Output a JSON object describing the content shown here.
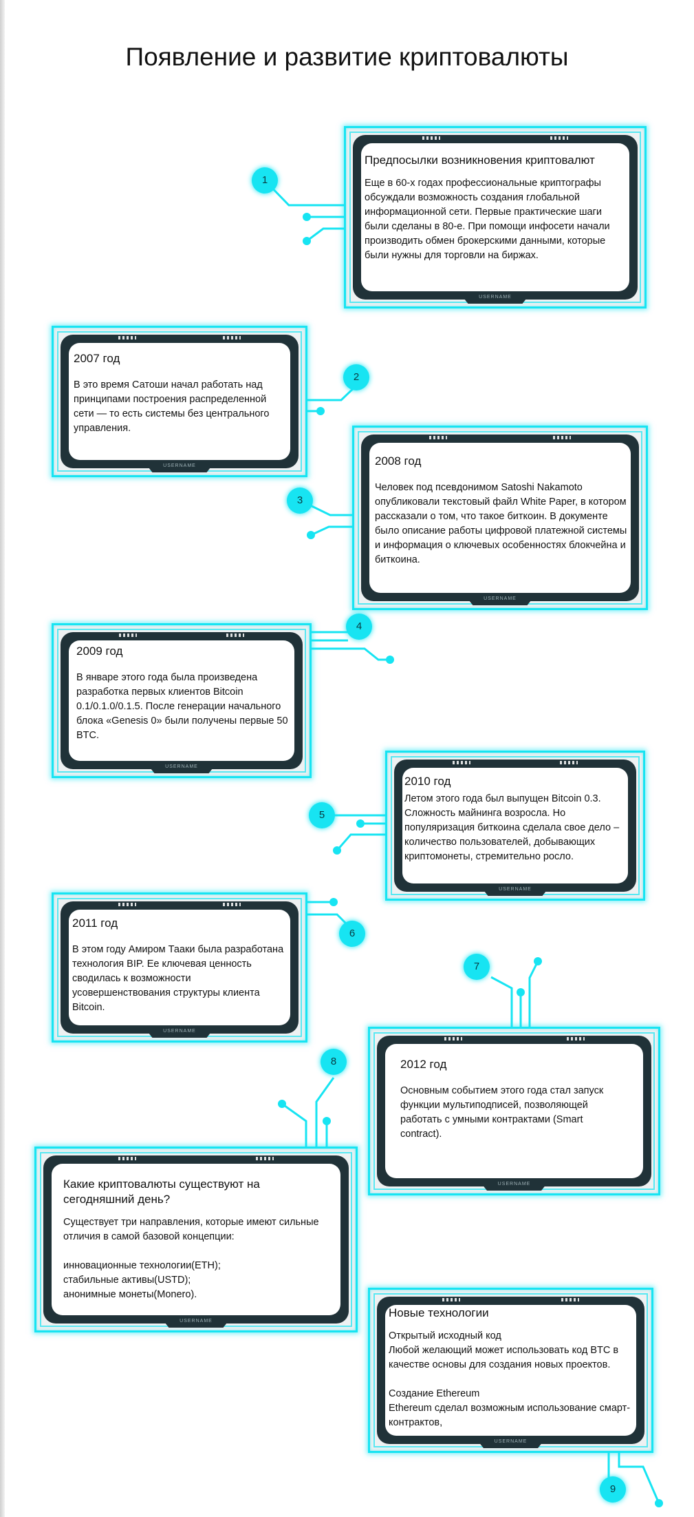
{
  "title": "Появление и развитие криптовалюты",
  "frame_label": "USERNAME",
  "colors": {
    "accent": "#17e4f2",
    "frame": "#203238"
  },
  "cards": [
    {
      "heading": "Предпосылки возникновения криптовалют",
      "body": "Еще в 60-х годах профессиональные криптографы обсуждали возможность создания глобальной информационной сети. Первые практические шаги были сделаны в 80-е. При помощи инфосети начали производить обмен брокерскими данными, которые были нужны для торговли на биржах."
    },
    {
      "heading": "2007 год",
      "body": "В это время Сатоши начал работать над принципами построения распределенной сети — то есть системы без центрального управления."
    },
    {
      "heading": "2008 год",
      "body": "Человек под псевдонимом Satoshi Nakamoto опубликовали текстовый файл White Paper, в котором рассказали о том, что такое биткоин. В документе было описание работы цифровой платежной системы и информация о ключевых особенностях блокчейна и биткоина."
    },
    {
      "heading": "2009 год",
      "body": "В январе этого года была произведена разработка первых клиентов Bitcoin 0.1/0.1.0/0.1.5. После генерации начального блока «Genesis 0» были получены первые 50 BTC."
    },
    {
      "heading": "2010 год",
      "body": "Летом этого года был выпущен Bitcoin 0.3. Сложность майнинга возросла. Но популяризация биткоина сделала свое дело – количество пользователей, добывающих криптомонеты, стремительно росло."
    },
    {
      "heading": "2011 год",
      "body": "В этом году Амиром Тааки была разработана технология BIP. Ее ключевая ценность сводилась к возможности усовершенствования структуры клиента Bitcoin."
    },
    {
      "heading": "2012 год",
      "body": "Основным событием этого года стал запуск функции мультиподписей, позволяющей работать с умными контрактами (Smart contract)."
    },
    {
      "heading": "Какие криптовалюты существуют на сегодняшний день?",
      "body": "Существует три направления, которые имеют сильные отличия в самой базовой концепции:\n\nинновационные технологии(ETH);\nстабильные активы(USTD);\nанонимные монеты(Monero)."
    },
    {
      "heading": "Новые технологии",
      "body": "Открытый исходный код\nЛюбой желающий может использовать код BTC в качестве основы для создания новых проектов.\n\nСоздание Ethereum\nEthereum сделал возможным использование смарт-контрактов,"
    }
  ],
  "badges": [
    "1",
    "2",
    "3",
    "4",
    "5",
    "6",
    "7",
    "8",
    "9"
  ]
}
